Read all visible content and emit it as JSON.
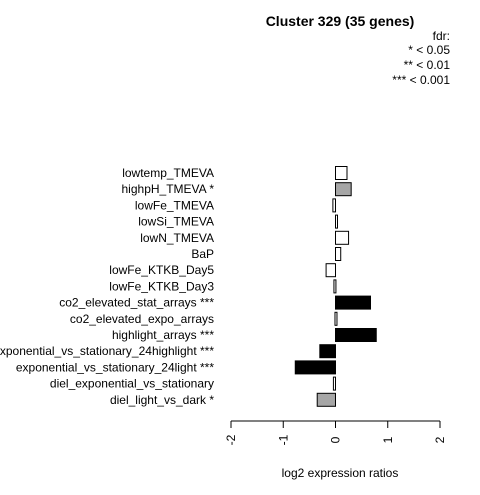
{
  "chart_data": {
    "type": "bar",
    "orientation": "horizontal",
    "title": "Cluster 329 (35 genes)",
    "xlabel": "log2 expression ratios",
    "ylabel": "",
    "xlim": [
      -2,
      2
    ],
    "xticks": [
      "-2",
      "-1",
      "0",
      "1",
      "2"
    ],
    "legend": {
      "title": "fdr:",
      "entries": [
        "* < 0.05",
        "** < 0.01",
        "*** < 0.001"
      ],
      "placement": "top-right"
    },
    "colors": {
      "sig": "#000000",
      "weak": "#a6a6a6",
      "none": "#ffffff"
    },
    "categories": [
      "lowtemp_TMEVA",
      "highpH_TMEVA *",
      "lowFe_TMEVA",
      "lowSi_TMEVA",
      "lowN_TMEVA",
      "BaP",
      "lowFe_KTKB_Day5",
      "lowFe_KTKB_Day3",
      "co2_elevated_stat_arrays ***",
      "co2_elevated_expo_arrays",
      "highlight_arrays ***",
      "exponential_vs_stationary_24highlight ***",
      "exponential_vs_stationary_24light ***",
      "diel_exponential_vs_stationary",
      "diel_light_vs_dark *"
    ],
    "values": [
      0.22,
      0.3,
      -0.05,
      0.02,
      0.25,
      0.1,
      -0.18,
      -0.03,
      0.67,
      -0.01,
      0.78,
      -0.3,
      -0.77,
      -0.04,
      -0.35
    ],
    "fill": [
      "none",
      "weak",
      "none",
      "none",
      "none",
      "none",
      "none",
      "none",
      "sig",
      "none",
      "sig",
      "sig",
      "sig",
      "none",
      "weak"
    ]
  }
}
